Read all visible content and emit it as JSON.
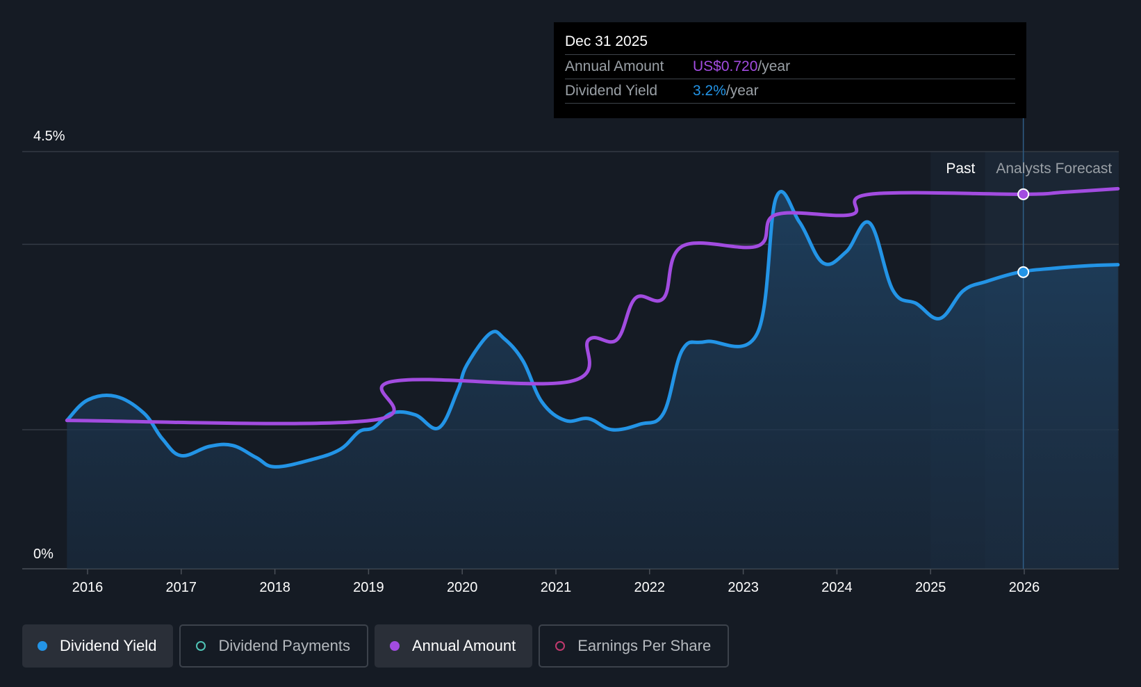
{
  "chart_data": {
    "type": "line",
    "x_ticks": [
      "2016",
      "2017",
      "2018",
      "2019",
      "2020",
      "2021",
      "2022",
      "2023",
      "2024",
      "2025",
      "2026"
    ],
    "y_ticks": [
      "0%",
      "4.5%"
    ],
    "ylim": [
      0,
      4.5
    ],
    "regions": {
      "past": "Past",
      "forecast": "Analysts Forecast"
    },
    "series": [
      {
        "name": "Dividend Yield",
        "color": "#2394e6",
        "area": true,
        "points": [
          [
            2015.78,
            1.6
          ],
          [
            2016.0,
            1.82
          ],
          [
            2016.3,
            1.86
          ],
          [
            2016.6,
            1.68
          ],
          [
            2016.8,
            1.4
          ],
          [
            2017.0,
            1.22
          ],
          [
            2017.3,
            1.32
          ],
          [
            2017.55,
            1.33
          ],
          [
            2017.8,
            1.2
          ],
          [
            2018.0,
            1.1
          ],
          [
            2018.4,
            1.18
          ],
          [
            2018.7,
            1.29
          ],
          [
            2018.9,
            1.48
          ],
          [
            2019.05,
            1.52
          ],
          [
            2019.25,
            1.68
          ],
          [
            2019.5,
            1.66
          ],
          [
            2019.75,
            1.52
          ],
          [
            2019.95,
            1.92
          ],
          [
            2020.05,
            2.2
          ],
          [
            2020.3,
            2.54
          ],
          [
            2020.45,
            2.48
          ],
          [
            2020.65,
            2.24
          ],
          [
            2020.85,
            1.8
          ],
          [
            2021.1,
            1.6
          ],
          [
            2021.35,
            1.62
          ],
          [
            2021.6,
            1.5
          ],
          [
            2021.9,
            1.56
          ],
          [
            2022.15,
            1.68
          ],
          [
            2022.35,
            2.36
          ],
          [
            2022.6,
            2.45
          ],
          [
            2023.15,
            2.54
          ],
          [
            2023.35,
            4.0
          ],
          [
            2023.6,
            3.74
          ],
          [
            2023.85,
            3.3
          ],
          [
            2024.1,
            3.42
          ],
          [
            2024.35,
            3.73
          ],
          [
            2024.6,
            3.0
          ],
          [
            2024.85,
            2.86
          ],
          [
            2025.1,
            2.7
          ],
          [
            2025.35,
            3.0
          ],
          [
            2025.6,
            3.1
          ],
          [
            2025.95,
            3.2
          ],
          [
            2026.3,
            3.24
          ],
          [
            2026.7,
            3.27
          ],
          [
            2027.0,
            3.28
          ]
        ]
      },
      {
        "name": "Annual Amount",
        "color": "#a24ce0",
        "area": false,
        "points": [
          [
            2015.78,
            1.6
          ],
          [
            2019.02,
            1.6
          ],
          [
            2019.25,
            2.02
          ],
          [
            2021.15,
            2.02
          ],
          [
            2021.35,
            2.47
          ],
          [
            2021.65,
            2.47
          ],
          [
            2021.85,
            2.92
          ],
          [
            2022.15,
            2.92
          ],
          [
            2022.35,
            3.48
          ],
          [
            2023.15,
            3.48
          ],
          [
            2023.35,
            3.82
          ],
          [
            2024.15,
            3.82
          ],
          [
            2024.35,
            4.04
          ],
          [
            2025.99,
            4.04
          ],
          [
            2026.4,
            4.06
          ],
          [
            2027.0,
            4.1
          ]
        ]
      }
    ],
    "highlight": {
      "x": 2025.99,
      "yield": 3.2,
      "amount": 4.04
    }
  },
  "tooltip": {
    "date": "Dec 31 2025",
    "rows": [
      {
        "label": "Annual Amount",
        "value": "US$0.720",
        "suffix": "/year",
        "color": "#a24ce0"
      },
      {
        "label": "Dividend Yield",
        "value": "3.2%",
        "suffix": "/year",
        "color": "#2394e6"
      }
    ]
  },
  "legend": [
    {
      "label": "Dividend Yield",
      "active": true,
      "color": "#2394e6",
      "filled": true
    },
    {
      "label": "Dividend Payments",
      "active": false,
      "color": "#4fc3b5",
      "filled": false
    },
    {
      "label": "Annual Amount",
      "active": true,
      "color": "#a24ce0",
      "filled": true
    },
    {
      "label": "Earnings Per Share",
      "active": false,
      "color": "#c0396e",
      "filled": false
    }
  ]
}
